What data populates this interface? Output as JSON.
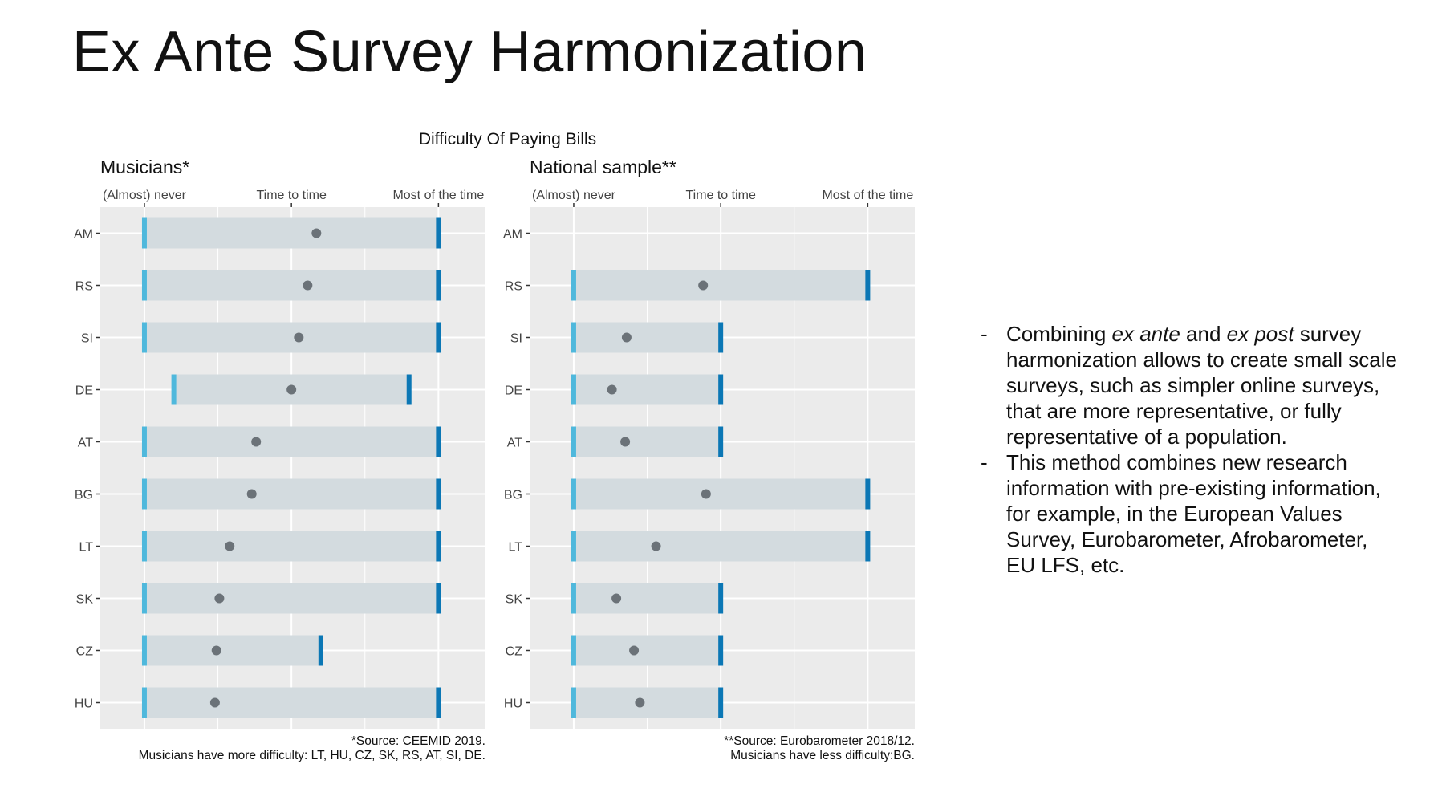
{
  "slide": {
    "title": "Ex Ante Survey Harmonization",
    "bullets": [
      [
        {
          "t": "Combining ",
          "i": false
        },
        {
          "t": "ex ante",
          "i": true
        },
        {
          "t": " and ",
          "i": false
        },
        {
          "t": "ex post",
          "i": true
        },
        {
          "t": " survey harmonization allows to create small scale surveys, such as simpler online surveys, that are more representative, or fully representative of a population.",
          "i": false
        }
      ],
      [
        {
          "t": "This method combines new research information with pre-existing information, for example, in the European Values Survey, Eurobarometer, Afrobarometer, EU LFS, etc.",
          "i": false
        }
      ]
    ]
  },
  "chart_data": {
    "type": "dumbbell",
    "title": "Difficulty Of Paying Bills",
    "categories": [
      "AM",
      "RS",
      "SI",
      "DE",
      "AT",
      "BG",
      "LT",
      "SK",
      "CZ",
      "HU"
    ],
    "x_tick_labels": [
      "(Almost) never",
      "Time to time",
      "Most of the time"
    ],
    "x_tick_values": [
      1,
      2,
      3
    ],
    "xlim": [
      0.7,
      3.32
    ],
    "grid": true,
    "colors": {
      "panel_bg": "#ebebeb",
      "grid": "#ffffff",
      "range_band": "#d3dbdf",
      "min_tick": "#4fb8dc",
      "max_tick": "#0b77b5",
      "point": "#6b7278"
    },
    "panels": [
      {
        "title": "Musicians*",
        "note_lines": [
          "*Source: CEEMID 2019.",
          "Musicians have more difficulty: LT, HU, CZ, SK, RS, AT, SI, DE."
        ],
        "rows": [
          {
            "category": "AM",
            "min": 1.0,
            "max": 3.0,
            "mean": 2.17
          },
          {
            "category": "RS",
            "min": 1.0,
            "max": 3.0,
            "mean": 2.11
          },
          {
            "category": "SI",
            "min": 1.0,
            "max": 3.0,
            "mean": 2.05
          },
          {
            "category": "DE",
            "min": 1.2,
            "max": 2.8,
            "mean": 2.0
          },
          {
            "category": "AT",
            "min": 1.0,
            "max": 3.0,
            "mean": 1.76
          },
          {
            "category": "BG",
            "min": 1.0,
            "max": 3.0,
            "mean": 1.73
          },
          {
            "category": "LT",
            "min": 1.0,
            "max": 3.0,
            "mean": 1.58
          },
          {
            "category": "SK",
            "min": 1.0,
            "max": 3.0,
            "mean": 1.51
          },
          {
            "category": "CZ",
            "min": 1.0,
            "max": 2.2,
            "mean": 1.49
          },
          {
            "category": "HU",
            "min": 1.0,
            "max": 3.0,
            "mean": 1.48
          }
        ]
      },
      {
        "title": "National sample**",
        "note_lines": [
          "**Source: Eurobarometer 2018/12.",
          "Musicians have less difficulty:BG."
        ],
        "rows": [
          {
            "category": "AM",
            "min": null,
            "max": null,
            "mean": null
          },
          {
            "category": "RS",
            "min": 1.0,
            "max": 3.0,
            "mean": 1.88
          },
          {
            "category": "SI",
            "min": 1.0,
            "max": 2.0,
            "mean": 1.36
          },
          {
            "category": "DE",
            "min": 1.0,
            "max": 2.0,
            "mean": 1.26
          },
          {
            "category": "AT",
            "min": 1.0,
            "max": 2.0,
            "mean": 1.35
          },
          {
            "category": "BG",
            "min": 1.0,
            "max": 3.0,
            "mean": 1.9
          },
          {
            "category": "LT",
            "min": 1.0,
            "max": 3.0,
            "mean": 1.56
          },
          {
            "category": "SK",
            "min": 1.0,
            "max": 2.0,
            "mean": 1.29
          },
          {
            "category": "CZ",
            "min": 1.0,
            "max": 2.0,
            "mean": 1.41
          },
          {
            "category": "HU",
            "min": 1.0,
            "max": 2.0,
            "mean": 1.45
          }
        ]
      }
    ]
  }
}
